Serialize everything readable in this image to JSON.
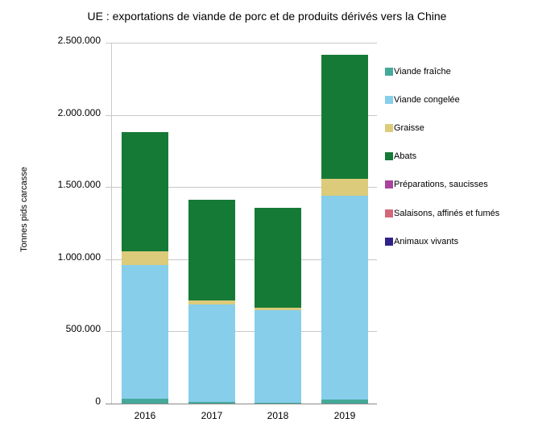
{
  "chart_data": {
    "type": "bar",
    "stacked": true,
    "title": "UE : exportations de viande de porc et de produits dérivés vers la Chine",
    "xlabel": "",
    "ylabel": "Tonnes pids carcasse",
    "ylim": [
      0,
      2500000
    ],
    "yticks": [
      0,
      500000,
      1000000,
      1500000,
      2000000,
      2500000
    ],
    "ytick_labels": [
      "0",
      "500.000",
      "1.000.000",
      "1.500.000",
      "2.000.000",
      "2.500.000"
    ],
    "grid": true,
    "legend_position": "right",
    "categories": [
      "2016",
      "2017",
      "2018",
      "2019"
    ],
    "series": [
      {
        "name": "Viande fraîche",
        "color": "#45a99a",
        "values": [
          33000,
          11000,
          6000,
          28000
        ]
      },
      {
        "name": "Viande congelée",
        "color": "#87ceeb",
        "values": [
          927000,
          675000,
          641000,
          1412000
        ]
      },
      {
        "name": "Graisse",
        "color": "#dccb7a",
        "values": [
          95000,
          28000,
          17000,
          117000
        ]
      },
      {
        "name": "Abats",
        "color": "#167a37",
        "values": [
          826000,
          698000,
          692000,
          859000
        ]
      },
      {
        "name": "Préparations, saucisses",
        "color": "#a8449e",
        "values": [
          0,
          0,
          0,
          0
        ]
      },
      {
        "name": "Salaisons, affinés et fumés",
        "color": "#d2687a",
        "values": [
          0,
          0,
          0,
          0
        ]
      },
      {
        "name": "Animaux vivants",
        "color": "#2e2288",
        "values": [
          0,
          0,
          0,
          0
        ]
      }
    ]
  }
}
